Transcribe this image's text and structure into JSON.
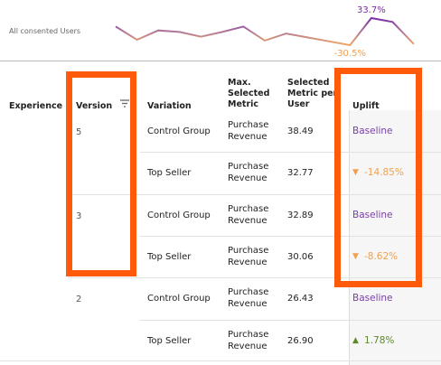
{
  "sparkline": {
    "label": "All consented Users",
    "values": [
      13.5,
      -17.6,
      4.4,
      0.7,
      -10.3,
      0.7,
      13.5,
      -19.5,
      -3.0,
      -12.2,
      -21.3,
      -30.5,
      33.7,
      24.5,
      -28.0
    ],
    "value_labels": [
      null,
      null,
      null,
      null,
      null,
      null,
      null,
      null,
      null,
      null,
      null,
      "-30.5%",
      "33.7%",
      null,
      null
    ]
  },
  "table": {
    "columns": [
      "Experience",
      "Version",
      "Variation",
      "Max. Selected Metric",
      "Selected Metric per User",
      "Uplift"
    ],
    "rows": [
      {
        "version": "5",
        "variation": "Control Group",
        "metric": "Purchase Revenue",
        "value": "38.49",
        "uplift": "Baseline",
        "trend": null
      },
      {
        "version": null,
        "variation": "Top Seller",
        "metric": "Purchase Revenue",
        "value": "32.77",
        "uplift": "-14.85%",
        "trend": "down"
      },
      {
        "version": "3",
        "variation": "Control Group",
        "metric": "Purchase Revenue",
        "value": "32.89",
        "uplift": "Baseline",
        "trend": null
      },
      {
        "version": null,
        "variation": "Top Seller",
        "metric": "Purchase Revenue",
        "value": "30.06",
        "uplift": "-8.62%",
        "trend": "down"
      },
      {
        "version": "2",
        "variation": "Control Group",
        "metric": "Purchase Revenue",
        "value": "26.43",
        "uplift": "Baseline",
        "trend": null
      },
      {
        "version": null,
        "variation": "Top Seller",
        "metric": "Purchase Revenue",
        "value": "26.90",
        "uplift": "1.78%",
        "trend": "up"
      }
    ]
  }
}
